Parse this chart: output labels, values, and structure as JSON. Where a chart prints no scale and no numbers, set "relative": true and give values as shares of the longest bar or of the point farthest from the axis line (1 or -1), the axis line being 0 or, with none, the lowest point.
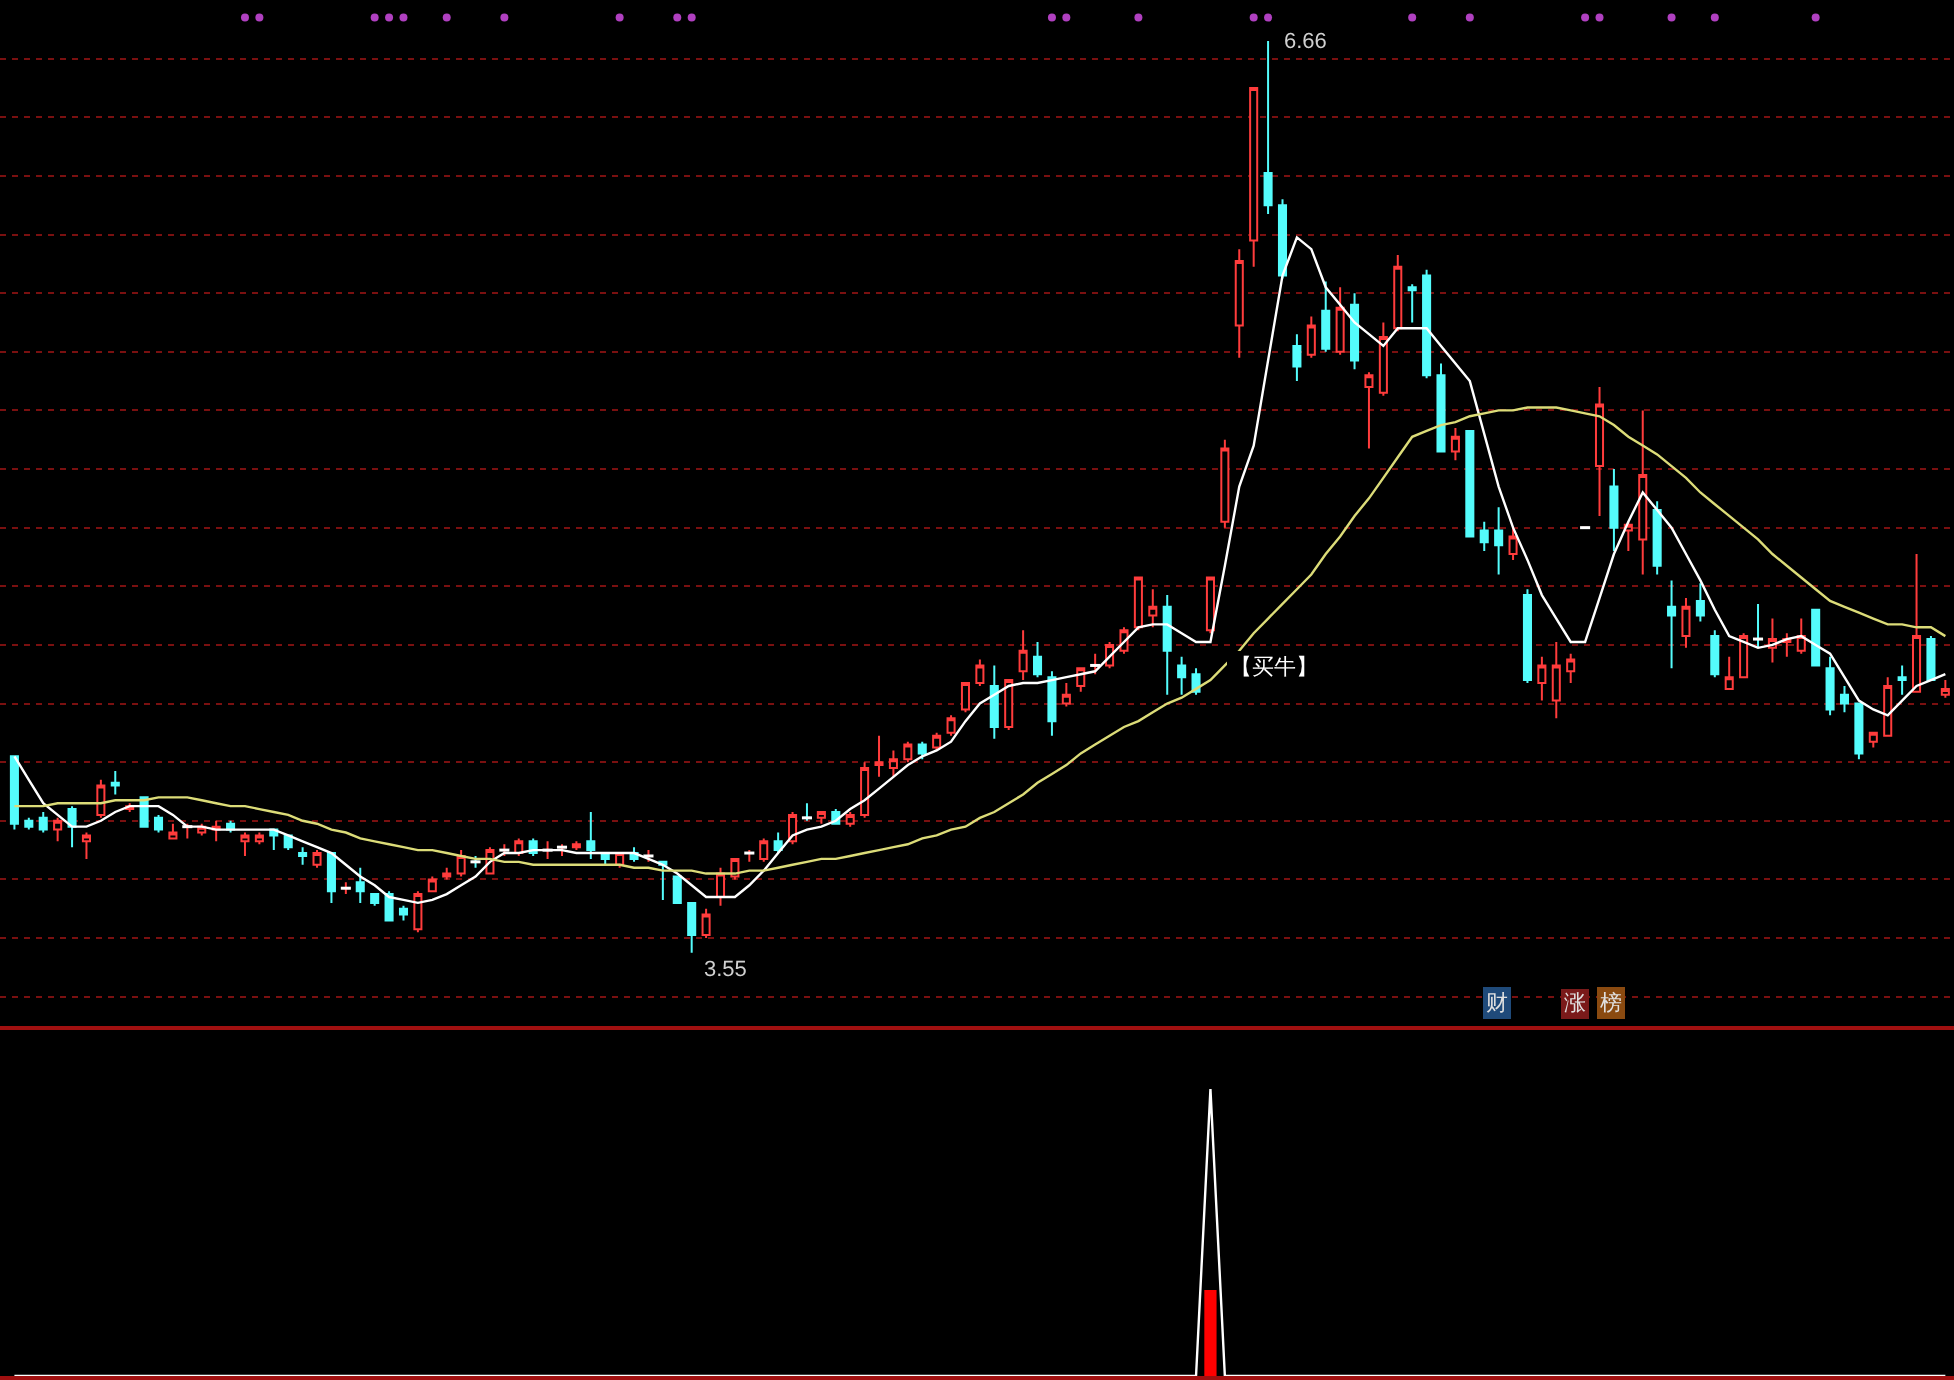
{
  "chart_data": [
    {
      "type": "candlestick",
      "categories": [
        null,
        null,
        null,
        null,
        null,
        null,
        null,
        null,
        null,
        null,
        null,
        null,
        null,
        null,
        null,
        null,
        null,
        null,
        null,
        null,
        null,
        null,
        null,
        null,
        null,
        null,
        null,
        null,
        null,
        null,
        null,
        null,
        null,
        null,
        null,
        null,
        null,
        null,
        null,
        null,
        null,
        null,
        null,
        null,
        null,
        null,
        null,
        null,
        null,
        null,
        null,
        null,
        null,
        null,
        null,
        null,
        null,
        null,
        null,
        null,
        null,
        null,
        null,
        null,
        null,
        null,
        null,
        null,
        null,
        null,
        null,
        null,
        null,
        null,
        null,
        null,
        null,
        null,
        null,
        null,
        null,
        null,
        null,
        null,
        null,
        null,
        null,
        null,
        null,
        null,
        null,
        null,
        null,
        null,
        null,
        null,
        null,
        null,
        null,
        null,
        null,
        null,
        null,
        null,
        null,
        null,
        null,
        null,
        null,
        null,
        null,
        null,
        null,
        null,
        null,
        null,
        null,
        null,
        null,
        null,
        null,
        null,
        null,
        null,
        null,
        null,
        null,
        null,
        null,
        null,
        null,
        null,
        null,
        null,
        null
      ],
      "ohlc": [
        [
          4.22,
          4.22,
          3.97,
          3.99
        ],
        [
          4.0,
          4.01,
          3.97,
          3.98
        ],
        [
          4.01,
          4.03,
          3.96,
          3.97
        ],
        [
          3.97,
          4.01,
          3.93,
          4.0
        ],
        [
          4.04,
          4.05,
          3.91,
          3.98
        ],
        [
          3.93,
          3.96,
          3.87,
          3.95
        ],
        [
          4.02,
          4.14,
          4.01,
          4.12
        ],
        [
          4.13,
          4.17,
          4.09,
          4.12
        ],
        [
          4.04,
          4.06,
          4.03,
          4.05
        ],
        [
          4.08,
          4.08,
          3.98,
          3.98
        ],
        [
          4.01,
          4.02,
          3.96,
          3.97
        ],
        [
          3.94,
          3.99,
          3.94,
          3.96
        ],
        [
          3.98,
          3.99,
          3.94,
          3.98
        ],
        [
          3.96,
          3.99,
          3.95,
          3.98
        ],
        [
          3.97,
          4.0,
          3.93,
          3.98
        ],
        [
          3.99,
          4.0,
          3.96,
          3.97
        ],
        [
          3.93,
          3.96,
          3.88,
          3.95
        ],
        [
          3.93,
          3.96,
          3.92,
          3.95
        ],
        [
          3.97,
          3.97,
          3.9,
          3.95
        ],
        [
          3.95,
          3.95,
          3.9,
          3.91
        ],
        [
          3.89,
          3.91,
          3.85,
          3.88
        ],
        [
          3.85,
          3.9,
          3.84,
          3.89
        ],
        [
          3.89,
          3.89,
          3.72,
          3.76
        ],
        [
          3.77,
          3.79,
          3.75,
          3.77
        ],
        [
          3.79,
          3.84,
          3.72,
          3.76
        ],
        [
          3.75,
          3.75,
          3.71,
          3.72
        ],
        [
          3.75,
          3.76,
          3.66,
          3.66
        ],
        [
          3.7,
          3.71,
          3.66,
          3.68
        ],
        [
          3.63,
          3.76,
          3.62,
          3.75
        ],
        [
          3.76,
          3.81,
          3.76,
          3.8
        ],
        [
          3.81,
          3.84,
          3.8,
          3.82
        ],
        [
          3.82,
          3.9,
          3.81,
          3.88
        ],
        [
          3.86,
          3.88,
          3.84,
          3.86
        ],
        [
          3.82,
          3.91,
          3.82,
          3.9
        ],
        [
          3.9,
          3.92,
          3.88,
          3.9
        ],
        [
          3.89,
          3.94,
          3.88,
          3.93
        ],
        [
          3.93,
          3.94,
          3.88,
          3.89
        ],
        [
          3.9,
          3.93,
          3.87,
          3.9
        ],
        [
          3.91,
          3.92,
          3.88,
          3.91
        ],
        [
          3.91,
          3.93,
          3.9,
          3.92
        ],
        [
          3.93,
          4.03,
          3.87,
          3.9
        ],
        [
          3.89,
          3.89,
          3.85,
          3.87
        ],
        [
          3.85,
          3.89,
          3.84,
          3.89
        ],
        [
          3.89,
          3.91,
          3.86,
          3.87
        ],
        [
          3.88,
          3.9,
          3.86,
          3.88
        ],
        [
          3.86,
          3.86,
          3.73,
          3.85
        ],
        [
          3.81,
          3.81,
          3.72,
          3.72
        ],
        [
          3.72,
          3.72,
          3.55,
          3.61
        ],
        [
          3.61,
          3.7,
          3.6,
          3.68
        ],
        [
          3.74,
          3.84,
          3.71,
          3.82
        ],
        [
          3.81,
          3.87,
          3.8,
          3.87
        ],
        [
          3.89,
          3.9,
          3.86,
          3.89
        ],
        [
          3.87,
          3.94,
          3.86,
          3.93
        ],
        [
          3.93,
          3.96,
          3.89,
          3.9
        ],
        [
          3.93,
          4.03,
          3.92,
          4.02
        ],
        [
          4.01,
          4.06,
          4.0,
          4.01
        ],
        [
          4.01,
          4.03,
          3.99,
          4.03
        ],
        [
          4.03,
          4.04,
          3.99,
          3.99
        ],
        [
          3.99,
          4.03,
          3.98,
          4.02
        ],
        [
          4.02,
          4.2,
          4.01,
          4.18
        ],
        [
          4.19,
          4.29,
          4.15,
          4.2
        ],
        [
          4.18,
          4.24,
          4.15,
          4.21
        ],
        [
          4.21,
          4.27,
          4.2,
          4.26
        ],
        [
          4.26,
          4.27,
          4.21,
          4.23
        ],
        [
          4.25,
          4.3,
          4.24,
          4.29
        ],
        [
          4.3,
          4.36,
          4.29,
          4.35
        ],
        [
          4.38,
          4.47,
          4.37,
          4.47
        ],
        [
          4.47,
          4.55,
          4.46,
          4.53
        ],
        [
          4.46,
          4.53,
          4.28,
          4.32
        ],
        [
          4.32,
          4.48,
          4.31,
          4.48
        ],
        [
          4.51,
          4.65,
          4.48,
          4.58
        ],
        [
          4.56,
          4.61,
          4.49,
          4.5
        ],
        [
          4.49,
          4.51,
          4.29,
          4.34
        ],
        [
          4.4,
          4.47,
          4.39,
          4.43
        ],
        [
          4.46,
          4.52,
          4.44,
          4.52
        ],
        [
          4.53,
          4.57,
          4.5,
          4.53
        ],
        [
          4.53,
          4.61,
          4.52,
          4.6
        ],
        [
          4.58,
          4.66,
          4.57,
          4.65
        ],
        [
          4.66,
          4.83,
          4.65,
          4.83
        ],
        [
          4.7,
          4.79,
          4.66,
          4.73
        ],
        [
          4.73,
          4.77,
          4.43,
          4.58
        ],
        [
          4.53,
          4.56,
          4.43,
          4.49
        ],
        [
          4.5,
          4.52,
          4.43,
          4.44
        ],
        [
          4.65,
          4.83,
          4.64,
          4.83
        ],
        [
          5.02,
          5.3,
          5.0,
          5.27
        ],
        [
          5.69,
          5.95,
          5.58,
          5.91
        ],
        [
          5.98,
          6.5,
          5.89,
          6.5
        ],
        [
          6.21,
          6.66,
          6.07,
          6.1
        ],
        [
          6.1,
          6.12,
          5.85,
          5.86
        ],
        [
          5.62,
          5.66,
          5.5,
          5.55
        ],
        [
          5.59,
          5.72,
          5.58,
          5.69
        ],
        [
          5.74,
          5.84,
          5.6,
          5.61
        ],
        [
          5.6,
          5.82,
          5.59,
          5.75
        ],
        [
          5.76,
          5.8,
          5.54,
          5.57
        ],
        [
          5.48,
          5.53,
          5.27,
          5.52
        ],
        [
          5.46,
          5.7,
          5.45,
          5.65
        ],
        [
          5.68,
          5.93,
          5.67,
          5.89
        ],
        [
          5.82,
          5.83,
          5.7,
          5.81
        ],
        [
          5.86,
          5.88,
          5.51,
          5.52
        ],
        [
          5.52,
          5.56,
          5.26,
          5.26
        ],
        [
          5.26,
          5.34,
          5.23,
          5.31
        ],
        [
          5.33,
          5.33,
          4.97,
          4.97
        ],
        [
          4.99,
          5.02,
          4.92,
          4.95
        ],
        [
          4.99,
          5.07,
          4.84,
          4.94
        ],
        [
          4.91,
          5.0,
          4.89,
          4.97
        ],
        [
          4.77,
          4.79,
          4.47,
          4.48
        ],
        [
          4.47,
          4.56,
          4.41,
          4.53
        ],
        [
          4.41,
          4.61,
          4.35,
          4.53
        ],
        [
          4.51,
          4.57,
          4.47,
          4.55
        ],
        [
          5.0,
          5.0,
          5.0,
          5.0
        ],
        [
          5.21,
          5.48,
          5.04,
          5.42
        ],
        [
          5.14,
          5.2,
          4.92,
          5.0
        ],
        [
          4.99,
          5.02,
          4.92,
          5.01
        ],
        [
          4.96,
          5.4,
          4.84,
          5.18
        ],
        [
          5.06,
          5.09,
          4.84,
          4.87
        ],
        [
          4.73,
          4.82,
          4.52,
          4.7
        ],
        [
          4.63,
          4.76,
          4.59,
          4.73
        ],
        [
          4.75,
          4.81,
          4.68,
          4.7
        ],
        [
          4.63,
          4.65,
          4.49,
          4.5
        ],
        [
          4.45,
          4.56,
          4.45,
          4.49
        ],
        [
          4.49,
          4.64,
          4.49,
          4.63
        ],
        [
          4.62,
          4.74,
          4.59,
          4.62
        ],
        [
          4.59,
          4.69,
          4.54,
          4.62
        ],
        [
          4.61,
          4.64,
          4.56,
          4.62
        ],
        [
          4.58,
          4.69,
          4.57,
          4.63
        ],
        [
          4.72,
          4.72,
          4.53,
          4.53
        ],
        [
          4.52,
          4.56,
          4.36,
          4.38
        ],
        [
          4.43,
          4.46,
          4.37,
          4.4
        ],
        [
          4.4,
          4.4,
          4.21,
          4.23
        ],
        [
          4.27,
          4.3,
          4.25,
          4.3
        ],
        [
          4.29,
          4.49,
          4.29,
          4.46
        ],
        [
          4.49,
          4.53,
          4.43,
          4.48
        ],
        [
          4.44,
          4.91,
          4.44,
          4.63
        ],
        [
          4.62,
          4.63,
          4.48,
          4.48
        ],
        [
          4.43,
          4.48,
          4.42,
          4.45
        ]
      ],
      "series": [
        {
          "type": "line",
          "color": "#ffffff",
          "values": [
            4.22,
            4.14,
            4.06,
            4.02,
            3.98,
            3.98,
            4.0,
            4.03,
            4.05,
            4.05,
            4.05,
            4.02,
            3.98,
            3.98,
            3.97,
            3.97,
            3.97,
            3.97,
            3.97,
            3.95,
            3.93,
            3.91,
            3.89,
            3.85,
            3.81,
            3.78,
            3.74,
            3.73,
            3.72,
            3.73,
            3.75,
            3.78,
            3.81,
            3.86,
            3.89,
            3.89,
            3.9,
            3.9,
            3.9,
            3.89,
            3.89,
            3.89,
            3.89,
            3.89,
            3.87,
            3.85,
            3.82,
            3.78,
            3.74,
            3.74,
            3.74,
            3.78,
            3.83,
            3.89,
            3.95,
            3.97,
            3.98,
            4.0,
            4.04,
            4.07,
            4.11,
            4.15,
            4.19,
            4.22,
            4.24,
            4.27,
            4.34,
            4.4,
            4.43,
            4.46,
            4.47,
            4.47,
            4.48,
            4.49,
            4.5,
            4.51,
            4.56,
            4.61,
            4.66,
            4.67,
            4.67,
            4.64,
            4.61,
            4.61,
            4.87,
            5.14,
            5.28,
            5.57,
            5.86,
            5.99,
            5.95,
            5.82,
            5.76,
            5.7,
            5.66,
            5.62,
            5.68,
            5.68,
            5.68,
            5.62,
            5.56,
            5.5,
            5.32,
            5.14,
            5.0,
            4.89,
            4.77,
            4.69,
            4.61,
            4.61,
            4.76,
            4.91,
            5.02,
            5.12,
            5.06,
            5.0,
            4.91,
            4.82,
            4.72,
            4.63,
            4.61,
            4.59,
            4.6,
            4.62,
            4.63,
            4.6,
            4.57,
            4.49,
            4.41,
            4.38,
            4.36,
            4.41,
            4.46,
            4.48,
            4.5
          ]
        },
        {
          "type": "line",
          "color": "#dcdc78",
          "values": [
            4.05,
            4.05,
            4.05,
            4.06,
            4.06,
            4.06,
            4.06,
            4.07,
            4.07,
            4.07,
            4.08,
            4.08,
            4.08,
            4.07,
            4.06,
            4.05,
            4.05,
            4.04,
            4.03,
            4.02,
            4.0,
            3.99,
            3.97,
            3.96,
            3.94,
            3.93,
            3.92,
            3.91,
            3.9,
            3.9,
            3.89,
            3.88,
            3.87,
            3.87,
            3.86,
            3.86,
            3.85,
            3.85,
            3.85,
            3.85,
            3.85,
            3.85,
            3.85,
            3.84,
            3.84,
            3.83,
            3.83,
            3.83,
            3.82,
            3.82,
            3.82,
            3.83,
            3.83,
            3.84,
            3.85,
            3.86,
            3.87,
            3.87,
            3.88,
            3.89,
            3.9,
            3.91,
            3.92,
            3.94,
            3.95,
            3.97,
            3.98,
            4.01,
            4.03,
            4.06,
            4.09,
            4.13,
            4.16,
            4.19,
            4.23,
            4.26,
            4.29,
            4.32,
            4.34,
            4.37,
            4.4,
            4.42,
            4.45,
            4.48,
            4.53,
            4.58,
            4.64,
            4.69,
            4.74,
            4.79,
            4.84,
            4.91,
            4.97,
            5.04,
            5.1,
            5.17,
            5.24,
            5.31,
            5.33,
            5.35,
            5.36,
            5.38,
            5.39,
            5.4,
            5.4,
            5.41,
            5.41,
            5.41,
            5.4,
            5.39,
            5.38,
            5.35,
            5.31,
            5.28,
            5.25,
            5.21,
            5.17,
            5.12,
            5.08,
            5.04,
            5.0,
            4.96,
            4.91,
            4.87,
            4.83,
            4.79,
            4.75,
            4.73,
            4.71,
            4.69,
            4.67,
            4.67,
            4.66,
            4.66,
            4.63
          ]
        },
        {
          "type": "scatter",
          "color": "#b040c0",
          "values": [
            null,
            null,
            null,
            null,
            null,
            null,
            null,
            null,
            null,
            null,
            null,
            null,
            null,
            null,
            null,
            null,
            6.74,
            6.74,
            null,
            null,
            null,
            null,
            null,
            null,
            null,
            6.74,
            6.74,
            6.74,
            null,
            null,
            6.74,
            null,
            null,
            null,
            6.74,
            null,
            null,
            null,
            null,
            null,
            null,
            null,
            6.74,
            null,
            null,
            null,
            6.74,
            6.74,
            null,
            null,
            null,
            null,
            null,
            null,
            null,
            null,
            null,
            null,
            null,
            null,
            null,
            null,
            null,
            null,
            null,
            null,
            null,
            null,
            null,
            null,
            null,
            null,
            6.74,
            6.74,
            null,
            null,
            null,
            null,
            6.74,
            null,
            null,
            null,
            null,
            null,
            null,
            null,
            6.74,
            6.74,
            null,
            null,
            null,
            null,
            null,
            null,
            null,
            null,
            null,
            6.74,
            null,
            null,
            null,
            6.74,
            null,
            null,
            null,
            null,
            null,
            null,
            null,
            6.74,
            6.74,
            null,
            null,
            null,
            null,
            6.74,
            null,
            null,
            6.74,
            null,
            null,
            null,
            null,
            null,
            null,
            6.74,
            null,
            null,
            null,
            null,
            null,
            null,
            null,
            null,
            null
          ]
        }
      ],
      "ylim": [
        3.3,
        6.8
      ],
      "yticks": [
        {
          "value": 3.4,
          "label": null
        },
        {
          "value": 3.6,
          "label": null
        },
        {
          "value": 3.8,
          "label": null
        },
        {
          "value": 4.0,
          "label": null
        },
        {
          "value": 4.2,
          "label": null
        },
        {
          "value": 4.4,
          "label": null
        },
        {
          "value": 4.6,
          "label": null
        },
        {
          "value": 4.8,
          "label": null
        },
        {
          "value": 5.0,
          "label": null
        },
        {
          "value": 5.2,
          "label": null
        },
        {
          "value": 5.4,
          "label": null
        },
        {
          "value": 5.6,
          "label": null
        },
        {
          "value": 5.8,
          "label": null
        },
        {
          "value": 6.0,
          "label": null
        },
        {
          "value": 6.2,
          "label": null
        },
        {
          "value": 6.4,
          "label": null
        },
        {
          "value": 6.6,
          "label": null
        }
      ],
      "grid": "y",
      "annotations": [
        "6.66",
        "3.55",
        "【买牛】",
        "财",
        "涨",
        "榜"
      ]
    },
    {
      "type": "bar",
      "relative": true,
      "categories": [
        null,
        null,
        null,
        null,
        null,
        null,
        null,
        null,
        null,
        null,
        null,
        null,
        null,
        null,
        null,
        null,
        null,
        null,
        null,
        null,
        null,
        null,
        null,
        null,
        null,
        null,
        null,
        null,
        null,
        null,
        null,
        null,
        null,
        null,
        null,
        null,
        null,
        null,
        null,
        null,
        null,
        null,
        null,
        null,
        null,
        null,
        null,
        null,
        null,
        null,
        null,
        null,
        null,
        null,
        null,
        null,
        null,
        null,
        null,
        null,
        null,
        null,
        null,
        null,
        null,
        null,
        null,
        null,
        null,
        null,
        null,
        null,
        null,
        null,
        null,
        null,
        null,
        null,
        null,
        null,
        null,
        null,
        null,
        null,
        null,
        null,
        null,
        null,
        null,
        null,
        null,
        null,
        null,
        null,
        null,
        null,
        null,
        null,
        null,
        null,
        null,
        null,
        null,
        null,
        null,
        null,
        null,
        null,
        null,
        null,
        null,
        null,
        null,
        null,
        null,
        null,
        null,
        null,
        null,
        null,
        null,
        null,
        null,
        null,
        null,
        null,
        null,
        null,
        null,
        null,
        null,
        null,
        null,
        null,
        null
      ],
      "series": [
        {
          "type": "bar",
          "color": "#ff0000",
          "values": [
            0,
            0,
            0,
            0,
            0,
            0,
            0,
            0,
            0,
            0,
            0,
            0,
            0,
            0,
            0,
            0,
            0,
            0,
            0,
            0,
            0,
            0,
            0,
            0,
            0,
            0,
            0,
            0,
            0,
            0,
            0,
            0,
            0,
            0,
            0,
            0,
            0,
            0,
            0,
            0,
            0,
            0,
            0,
            0,
            0,
            0,
            0,
            0,
            0,
            0,
            0,
            0,
            0,
            0,
            0,
            0,
            0,
            0,
            0,
            0,
            0,
            0,
            0,
            0,
            0,
            0,
            0,
            0,
            0,
            0,
            0,
            0,
            0,
            0,
            0,
            0,
            0,
            0,
            0,
            0,
            0,
            0,
            0,
            0.3,
            0,
            0,
            0,
            0,
            0,
            0,
            0,
            0,
            0,
            0,
            0,
            0,
            0,
            0,
            0,
            0,
            0,
            0,
            0,
            0,
            0,
            0,
            0,
            0,
            0,
            0,
            0,
            0,
            0,
            0,
            0,
            0,
            0,
            0,
            0,
            0,
            0,
            0,
            0,
            0,
            0,
            0,
            0,
            0,
            0,
            0,
            0,
            0,
            0,
            0,
            0
          ]
        },
        {
          "type": "line",
          "color": "#ffffff",
          "values": [
            0,
            0,
            0,
            0,
            0,
            0,
            0,
            0,
            0,
            0,
            0,
            0,
            0,
            0,
            0,
            0,
            0,
            0,
            0,
            0,
            0,
            0,
            0,
            0,
            0,
            0,
            0,
            0,
            0,
            0,
            0,
            0,
            0,
            0,
            0,
            0,
            0,
            0,
            0,
            0,
            0,
            0,
            0,
            0,
            0,
            0,
            0,
            0,
            0,
            0,
            0,
            0,
            0,
            0,
            0,
            0,
            0,
            0,
            0,
            0,
            0,
            0,
            0,
            0,
            0,
            0,
            0,
            0,
            0,
            0,
            0,
            0,
            0,
            0,
            0,
            0,
            0,
            0,
            0,
            0,
            0,
            0,
            0,
            1,
            0,
            0,
            0,
            0,
            0,
            0,
            0,
            0,
            0,
            0,
            0,
            0,
            0,
            0,
            0,
            0,
            0,
            0,
            0,
            0,
            0,
            0,
            0,
            0,
            0,
            0,
            0,
            0,
            0,
            0,
            0,
            0,
            0,
            0,
            0,
            0,
            0,
            0,
            0,
            0,
            0,
            0,
            0,
            0,
            0,
            0,
            0,
            0,
            0,
            0,
            0
          ]
        }
      ]
    }
  ]
}
